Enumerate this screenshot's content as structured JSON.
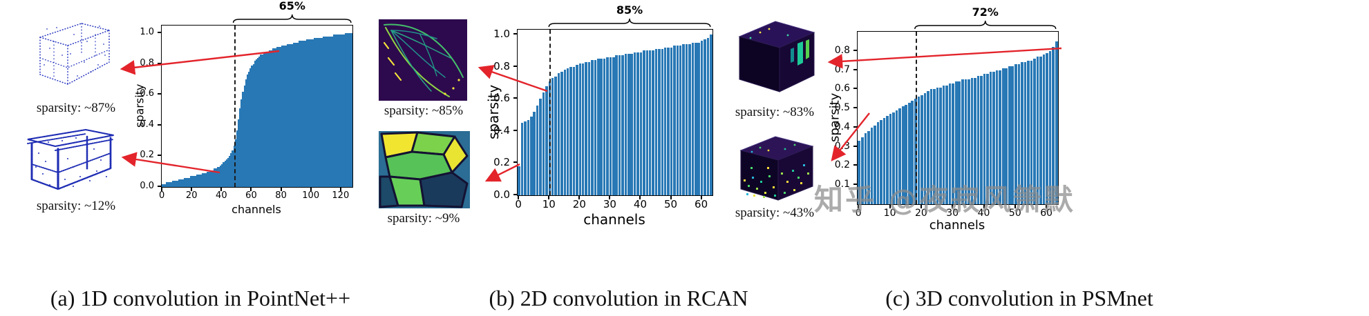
{
  "watermark": "知乎 @夜寂风箫默",
  "panels": [
    {
      "caption": "(a) 1D convolution in PointNet++",
      "images": [
        {
          "label": "sparsity: ~87%"
        },
        {
          "label": "sparsity: ~12%"
        }
      ]
    },
    {
      "caption": "(b) 2D convolution in RCAN",
      "images": [
        {
          "label": "sparsity: ~85%"
        },
        {
          "label": "sparsity: ~9%"
        }
      ]
    },
    {
      "caption": "(c) 3D convolution in PSMnet",
      "images": [
        {
          "label": "sparsity: ~83%"
        },
        {
          "label": "sparsity: ~43%"
        }
      ]
    }
  ],
  "chart_data": [
    {
      "type": "bar",
      "title": "",
      "xlabel": "channels",
      "ylabel": "sparsity",
      "annotation": "65%",
      "bar_color": "#2878b5",
      "xticks": [
        0,
        20,
        40,
        60,
        80,
        100,
        120
      ],
      "yticks": [
        0.0,
        0.2,
        0.4,
        0.6,
        0.8,
        1.0
      ],
      "ylim": [
        0,
        1.05
      ],
      "dashed_line_x": 48,
      "brace_range": [
        48,
        127
      ],
      "values": [
        0.02,
        0.02,
        0.02,
        0.03,
        0.03,
        0.03,
        0.03,
        0.04,
        0.04,
        0.04,
        0.04,
        0.05,
        0.05,
        0.05,
        0.05,
        0.06,
        0.06,
        0.06,
        0.06,
        0.07,
        0.07,
        0.07,
        0.07,
        0.08,
        0.08,
        0.08,
        0.08,
        0.09,
        0.09,
        0.09,
        0.1,
        0.1,
        0.1,
        0.11,
        0.11,
        0.12,
        0.12,
        0.13,
        0.13,
        0.14,
        0.15,
        0.16,
        0.17,
        0.18,
        0.19,
        0.2,
        0.22,
        0.24,
        0.27,
        0.31,
        0.37,
        0.44,
        0.51,
        0.57,
        0.62,
        0.66,
        0.7,
        0.73,
        0.75,
        0.77,
        0.79,
        0.8,
        0.82,
        0.83,
        0.84,
        0.85,
        0.86,
        0.86,
        0.87,
        0.87,
        0.88,
        0.88,
        0.89,
        0.89,
        0.9,
        0.9,
        0.9,
        0.91,
        0.91,
        0.91,
        0.92,
        0.92,
        0.92,
        0.92,
        0.93,
        0.93,
        0.93,
        0.93,
        0.94,
        0.94,
        0.94,
        0.94,
        0.95,
        0.95,
        0.95,
        0.95,
        0.95,
        0.96,
        0.96,
        0.96,
        0.96,
        0.96,
        0.97,
        0.97,
        0.97,
        0.97,
        0.97,
        0.97,
        0.98,
        0.98,
        0.98,
        0.98,
        0.98,
        0.98,
        0.98,
        0.99,
        0.99,
        0.99,
        0.99,
        0.99,
        0.99,
        0.99,
        0.99,
        1.0,
        1.0,
        1.0,
        1.0,
        1.0
      ]
    },
    {
      "type": "bar",
      "title": "",
      "xlabel": "channels",
      "ylabel": "sparsity",
      "annotation": "85%",
      "bar_color": "#2878b5",
      "xticks": [
        0,
        10,
        20,
        30,
        40,
        50,
        60
      ],
      "yticks": [
        0.0,
        0.2,
        0.4,
        0.6,
        0.8,
        1.0
      ],
      "ylim": [
        0,
        1.03
      ],
      "dashed_line_x": 10,
      "brace_range": [
        10,
        63
      ],
      "values": [
        0.18,
        0.45,
        0.46,
        0.47,
        0.49,
        0.52,
        0.56,
        0.6,
        0.64,
        0.68,
        0.71,
        0.73,
        0.74,
        0.76,
        0.77,
        0.78,
        0.79,
        0.8,
        0.8,
        0.81,
        0.82,
        0.82,
        0.83,
        0.83,
        0.84,
        0.84,
        0.85,
        0.85,
        0.85,
        0.86,
        0.86,
        0.86,
        0.87,
        0.87,
        0.87,
        0.88,
        0.88,
        0.88,
        0.89,
        0.89,
        0.89,
        0.9,
        0.9,
        0.9,
        0.9,
        0.91,
        0.91,
        0.91,
        0.92,
        0.92,
        0.92,
        0.93,
        0.93,
        0.93,
        0.94,
        0.94,
        0.94,
        0.95,
        0.95,
        0.95,
        0.96,
        0.97,
        0.98,
        1.0
      ]
    },
    {
      "type": "bar",
      "title": "",
      "xlabel": "channels",
      "ylabel": "sparsity",
      "annotation": "72%",
      "bar_color": "#2878b5",
      "xticks": [
        0,
        10,
        20,
        30,
        40,
        50,
        60
      ],
      "yticks": [
        0.1,
        0.2,
        0.3,
        0.4,
        0.5,
        0.6,
        0.7,
        0.8
      ],
      "ylim": [
        0,
        0.9
      ],
      "dashed_line_x": 18,
      "brace_range": [
        18,
        63
      ],
      "values": [
        0.33,
        0.35,
        0.37,
        0.38,
        0.4,
        0.41,
        0.43,
        0.44,
        0.45,
        0.46,
        0.47,
        0.48,
        0.49,
        0.5,
        0.51,
        0.52,
        0.53,
        0.54,
        0.55,
        0.56,
        0.57,
        0.58,
        0.59,
        0.6,
        0.6,
        0.61,
        0.61,
        0.62,
        0.62,
        0.63,
        0.63,
        0.64,
        0.64,
        0.65,
        0.65,
        0.65,
        0.66,
        0.66,
        0.67,
        0.67,
        0.68,
        0.68,
        0.69,
        0.69,
        0.7,
        0.7,
        0.71,
        0.71,
        0.72,
        0.72,
        0.73,
        0.73,
        0.74,
        0.74,
        0.75,
        0.75,
        0.76,
        0.77,
        0.77,
        0.78,
        0.79,
        0.8,
        0.82,
        0.85
      ]
    }
  ]
}
